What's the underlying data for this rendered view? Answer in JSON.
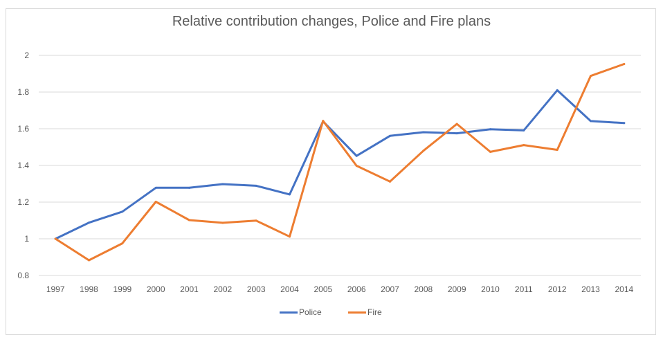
{
  "chart_data": {
    "type": "line",
    "title": "Relative contribution changes, Police and Fire plans",
    "categories": [
      "1997",
      "1998",
      "1999",
      "2000",
      "2001",
      "2002",
      "2003",
      "2004",
      "2005",
      "2006",
      "2007",
      "2008",
      "2009",
      "2010",
      "2011",
      "2012",
      "2013",
      "2014"
    ],
    "series": [
      {
        "name": "Police",
        "color": "#4472c4",
        "values": [
          1.0,
          1.088,
          1.148,
          1.278,
          1.278,
          1.298,
          1.289,
          1.242,
          1.64,
          1.452,
          1.561,
          1.581,
          1.575,
          1.597,
          1.591,
          1.81,
          1.642,
          1.631
        ]
      },
      {
        "name": "Fire",
        "color": "#ed7d31",
        "values": [
          1.0,
          0.883,
          0.975,
          1.202,
          1.102,
          1.087,
          1.099,
          1.012,
          1.643,
          1.398,
          1.312,
          1.48,
          1.626,
          1.474,
          1.511,
          1.485,
          1.888,
          1.953
        ]
      }
    ],
    "yticks": [
      "0.8",
      "1",
      "1.2",
      "1.4",
      "1.6",
      "1.8",
      "2"
    ],
    "ylim": [
      0.8,
      2.0
    ],
    "xlabel": "",
    "ylabel": "",
    "grid": true,
    "legend_position": "bottom"
  }
}
